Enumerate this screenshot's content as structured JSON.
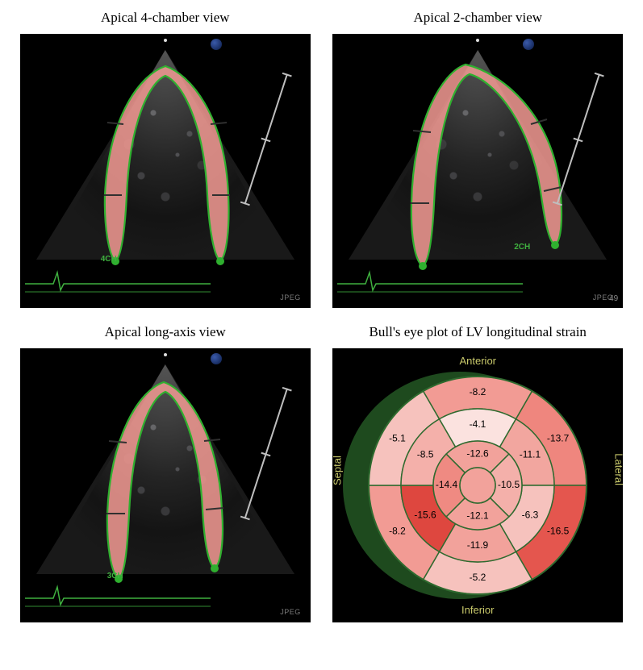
{
  "panels": {
    "a4c": {
      "title": "Apical 4-chamber view",
      "label": "4CH",
      "jpeg": "JPEG"
    },
    "a2c": {
      "title": "Apical 2-chamber view",
      "label": "2CH",
      "jpeg": "JPEG",
      "frame": "49"
    },
    "alax": {
      "title": "Apical long-axis view",
      "label": "3CH",
      "jpeg": "JPEG"
    },
    "bullseye": {
      "title": "Bull's eye plot of LV longitudinal strain"
    }
  },
  "bullseye": {
    "axis_labels": {
      "top": "Anterior",
      "bottom": "Inferior",
      "left": "Septal",
      "right": "Lateral"
    },
    "background_color": "#000000",
    "ring_stroke": "#2f6a2f",
    "side_disk_fill": "#1e4a1e",
    "label_color": "#c9c96b",
    "value_color": "#000000",
    "segments": {
      "basal": [
        {
          "value": -8.2,
          "color": "#f29b94"
        },
        {
          "value": -13.7,
          "color": "#ef867e"
        },
        {
          "value": -16.5,
          "color": "#e4564e"
        },
        {
          "value": -5.2,
          "color": "#f6c2bd"
        },
        {
          "value": -8.2,
          "color": "#f29b94"
        },
        {
          "value": -5.1,
          "color": "#f6c2bd"
        }
      ],
      "mid": [
        {
          "value": -4.1,
          "color": "#fbe2df"
        },
        {
          "value": -11.1,
          "color": "#f2a69f"
        },
        {
          "value": -6.3,
          "color": "#f6c2bd"
        },
        {
          "value": -11.9,
          "color": "#f2a29b"
        },
        {
          "value": -15.6,
          "color": "#de473f"
        },
        {
          "value": -8.5,
          "color": "#f4b0aa"
        }
      ],
      "apical": [
        {
          "value": -12.6,
          "color": "#f2a29b"
        },
        {
          "value": -10.5,
          "color": "#f4b0aa"
        },
        {
          "value": -12.1,
          "color": "#f2a29b"
        },
        {
          "value": -14.4,
          "color": "#ef8a82"
        }
      ]
    },
    "radii": {
      "outer": 135,
      "r_mid": 95,
      "r_api": 55,
      "r_center": 22
    }
  },
  "echo_style": {
    "strain_band_fill": "#f59b94",
    "strain_outline": "#2fb02f",
    "strain_tick": "#303030",
    "ecg_color": "#3fb03f",
    "scale_color": "#bfbfbf"
  }
}
